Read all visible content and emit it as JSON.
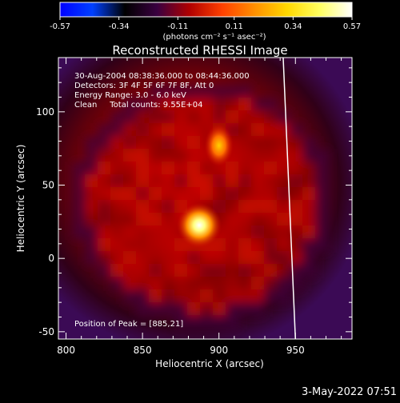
{
  "colorbar": {
    "tick_labels": [
      "-0.57",
      "-0.34",
      "-0.11",
      "0.11",
      "0.34",
      "0.57"
    ],
    "range": [
      -0.57,
      0.57
    ],
    "unit_label": "(photons cm⁻² s⁻¹ asec⁻²)",
    "colormap_stops": [
      "#0000ff",
      "#0040ff",
      "#000000",
      "#3a0040",
      "#b00000",
      "#ff4000",
      "#ff9000",
      "#ffd800",
      "#ffff60",
      "#ffffff"
    ]
  },
  "chart_data": {
    "type": "heatmap",
    "title": "Reconstructed RHESSI Image",
    "xlabel": "Heliocentric X (arcsec)",
    "ylabel": "Heliocentric Y (arcsec)",
    "x_ticks": [
      800,
      850,
      900,
      950
    ],
    "y_ticks": [
      -50,
      0,
      50,
      100
    ],
    "xlim": [
      795,
      987
    ],
    "ylim": [
      -55,
      137
    ],
    "grid": false,
    "info_lines": [
      "30-Aug-2004 08:38:36.000 to 08:44:36.000",
      "Detectors: 3F 4F 5F 6F 7F 8F, Att 0",
      "Energy Range: 3.0 - 6.0 keV",
      "Clean     Total counts: 9.55E+04"
    ],
    "peak_label": "Position of Peak = [885,21]",
    "peak": {
      "x": 885,
      "y": 21
    },
    "secondary_source": {
      "x": 900,
      "y": 77
    },
    "background_level": 0.15,
    "limb_x_at_top": 942,
    "limb_x_at_bottom": 950
  },
  "timestamp": "3-May-2022 07:51"
}
